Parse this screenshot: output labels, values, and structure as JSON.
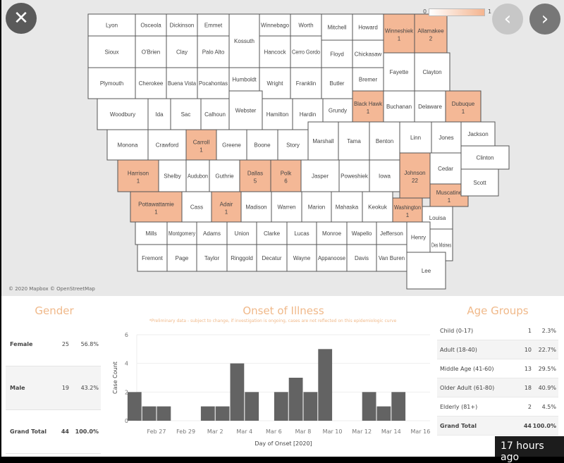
{
  "map": {
    "attribution": "© 2020 Mapbox © OpenStreetMap",
    "legend": {
      "min_label": "0",
      "max_label": "1",
      "low_color": "#ffffff",
      "high_color": "#f4b48f"
    },
    "county_fill_color": "#f4b896",
    "counties": [
      {
        "name": "Lyon"
      },
      {
        "name": "Osceola"
      },
      {
        "name": "Dickinson"
      },
      {
        "name": "Emmet"
      },
      {
        "name": "Kossuth"
      },
      {
        "name": "Winnebago"
      },
      {
        "name": "Worth"
      },
      {
        "name": "Mitchell"
      },
      {
        "name": "Howard"
      },
      {
        "name": "Winneshiek",
        "count": "1"
      },
      {
        "name": "Allamakee",
        "count": "2"
      },
      {
        "name": "Sioux"
      },
      {
        "name": "O'Brien"
      },
      {
        "name": "Clay"
      },
      {
        "name": "Palo Alto"
      },
      {
        "name": "Hancock"
      },
      {
        "name": "Cerro Gordo"
      },
      {
        "name": "Floyd"
      },
      {
        "name": "Chickasaw"
      },
      {
        "name": "Fayette"
      },
      {
        "name": "Clayton"
      },
      {
        "name": "Plymouth"
      },
      {
        "name": "Cherokee"
      },
      {
        "name": "Buena Vista"
      },
      {
        "name": "Pocahontas"
      },
      {
        "name": "Humboldt"
      },
      {
        "name": "Wright"
      },
      {
        "name": "Franklin"
      },
      {
        "name": "Butler"
      },
      {
        "name": "Bremer"
      },
      {
        "name": "Black Hawk",
        "count": "1"
      },
      {
        "name": "Buchanan"
      },
      {
        "name": "Delaware"
      },
      {
        "name": "Dubuque",
        "count": "1"
      },
      {
        "name": "Woodbury"
      },
      {
        "name": "Ida"
      },
      {
        "name": "Sac"
      },
      {
        "name": "Calhoun"
      },
      {
        "name": "Webster"
      },
      {
        "name": "Hamilton"
      },
      {
        "name": "Hardin"
      },
      {
        "name": "Grundy"
      },
      {
        "name": "Monona"
      },
      {
        "name": "Crawford"
      },
      {
        "name": "Carroll",
        "count": "1"
      },
      {
        "name": "Greene"
      },
      {
        "name": "Boone"
      },
      {
        "name": "Story"
      },
      {
        "name": "Marshall"
      },
      {
        "name": "Tama"
      },
      {
        "name": "Benton"
      },
      {
        "name": "Linn"
      },
      {
        "name": "Jones"
      },
      {
        "name": "Jackson"
      },
      {
        "name": "Harrison",
        "count": "1"
      },
      {
        "name": "Shelby"
      },
      {
        "name": "Audubon"
      },
      {
        "name": "Guthrie"
      },
      {
        "name": "Dallas",
        "count": "5"
      },
      {
        "name": "Polk",
        "count": "6"
      },
      {
        "name": "Jasper"
      },
      {
        "name": "Poweshiek"
      },
      {
        "name": "Iowa"
      },
      {
        "name": "Johnson",
        "count": "22"
      },
      {
        "name": "Cedar"
      },
      {
        "name": "Clinton"
      },
      {
        "name": "Pottawattamie",
        "count": "1"
      },
      {
        "name": "Cass"
      },
      {
        "name": "Adair",
        "count": "1"
      },
      {
        "name": "Madison"
      },
      {
        "name": "Warren"
      },
      {
        "name": "Marion"
      },
      {
        "name": "Mahaska"
      },
      {
        "name": "Keokuk"
      },
      {
        "name": "Washington",
        "count": "1"
      },
      {
        "name": "Muscatine",
        "count": "1"
      },
      {
        "name": "Louisa"
      },
      {
        "name": "Scott"
      },
      {
        "name": "Mills"
      },
      {
        "name": "Montgomery"
      },
      {
        "name": "Adams"
      },
      {
        "name": "Union"
      },
      {
        "name": "Clarke"
      },
      {
        "name": "Lucas"
      },
      {
        "name": "Monroe"
      },
      {
        "name": "Wapello"
      },
      {
        "name": "Jefferson"
      },
      {
        "name": "Henry"
      },
      {
        "name": "Fremont"
      },
      {
        "name": "Page"
      },
      {
        "name": "Taylor"
      },
      {
        "name": "Ringgold"
      },
      {
        "name": "Decatur"
      },
      {
        "name": "Wayne"
      },
      {
        "name": "Appanoose"
      },
      {
        "name": "Davis"
      },
      {
        "name": "Van Buren"
      },
      {
        "name": "Des Moines"
      },
      {
        "name": "Lee"
      }
    ]
  },
  "nav": {
    "close_icon": "close-icon",
    "prev_icon": "chevron-left-icon",
    "next_icon": "chevron-right-icon"
  },
  "gender": {
    "title": "Gender",
    "rows": [
      {
        "label": "Female",
        "count": "25",
        "pct": "56.8%"
      },
      {
        "label": "Male",
        "count": "19",
        "pct": "43.2%"
      },
      {
        "label": "Grand Total",
        "count": "44",
        "pct": "100.0%"
      }
    ]
  },
  "onset": {
    "title": "Onset of Illness",
    "note": "*Preliminary data - subject to change, if investigation is ongoing, cases are not reflected on this epidemiologic curve",
    "bar_color": "#636363"
  },
  "chart_data": {
    "type": "bar",
    "xlabel": "Day of Onset [2020]",
    "ylabel": "Case Count",
    "ylim": [
      0,
      6
    ],
    "yticks": [
      "0",
      "2",
      "4",
      "6"
    ],
    "xticks": [
      "Feb 27",
      "Feb 29",
      "Mar 2",
      "Mar 4",
      "Mar 6",
      "Mar 8",
      "Mar 10",
      "Mar 12",
      "Mar 14",
      "Mar 16"
    ],
    "grid": true,
    "x": [
      "2020-02-26",
      "2020-02-27",
      "2020-02-28",
      "2020-03-02",
      "2020-03-03",
      "2020-03-04",
      "2020-03-05",
      "2020-03-07",
      "2020-03-08",
      "2020-03-09",
      "2020-03-10",
      "2020-03-13",
      "2020-03-14",
      "2020-03-15"
    ],
    "values": [
      2,
      1,
      1,
      1,
      1,
      4,
      2,
      2,
      3,
      2,
      5,
      2,
      1,
      2
    ]
  },
  "age": {
    "title": "Age Groups",
    "rows": [
      {
        "label": "Child (0-17)",
        "count": "1",
        "pct": "2.3%"
      },
      {
        "label": "Adult (18-40)",
        "count": "10",
        "pct": "22.7%"
      },
      {
        "label": "Middle Age (41-60)",
        "count": "13",
        "pct": "29.5%"
      },
      {
        "label": "Older Adult (61-80)",
        "count": "18",
        "pct": "40.9%"
      },
      {
        "label": "Elderly (81+)",
        "count": "2",
        "pct": "4.5%"
      },
      {
        "label": "Grand Total",
        "count": "44",
        "pct": "100.0%"
      }
    ]
  },
  "badge": "17 hours ago"
}
